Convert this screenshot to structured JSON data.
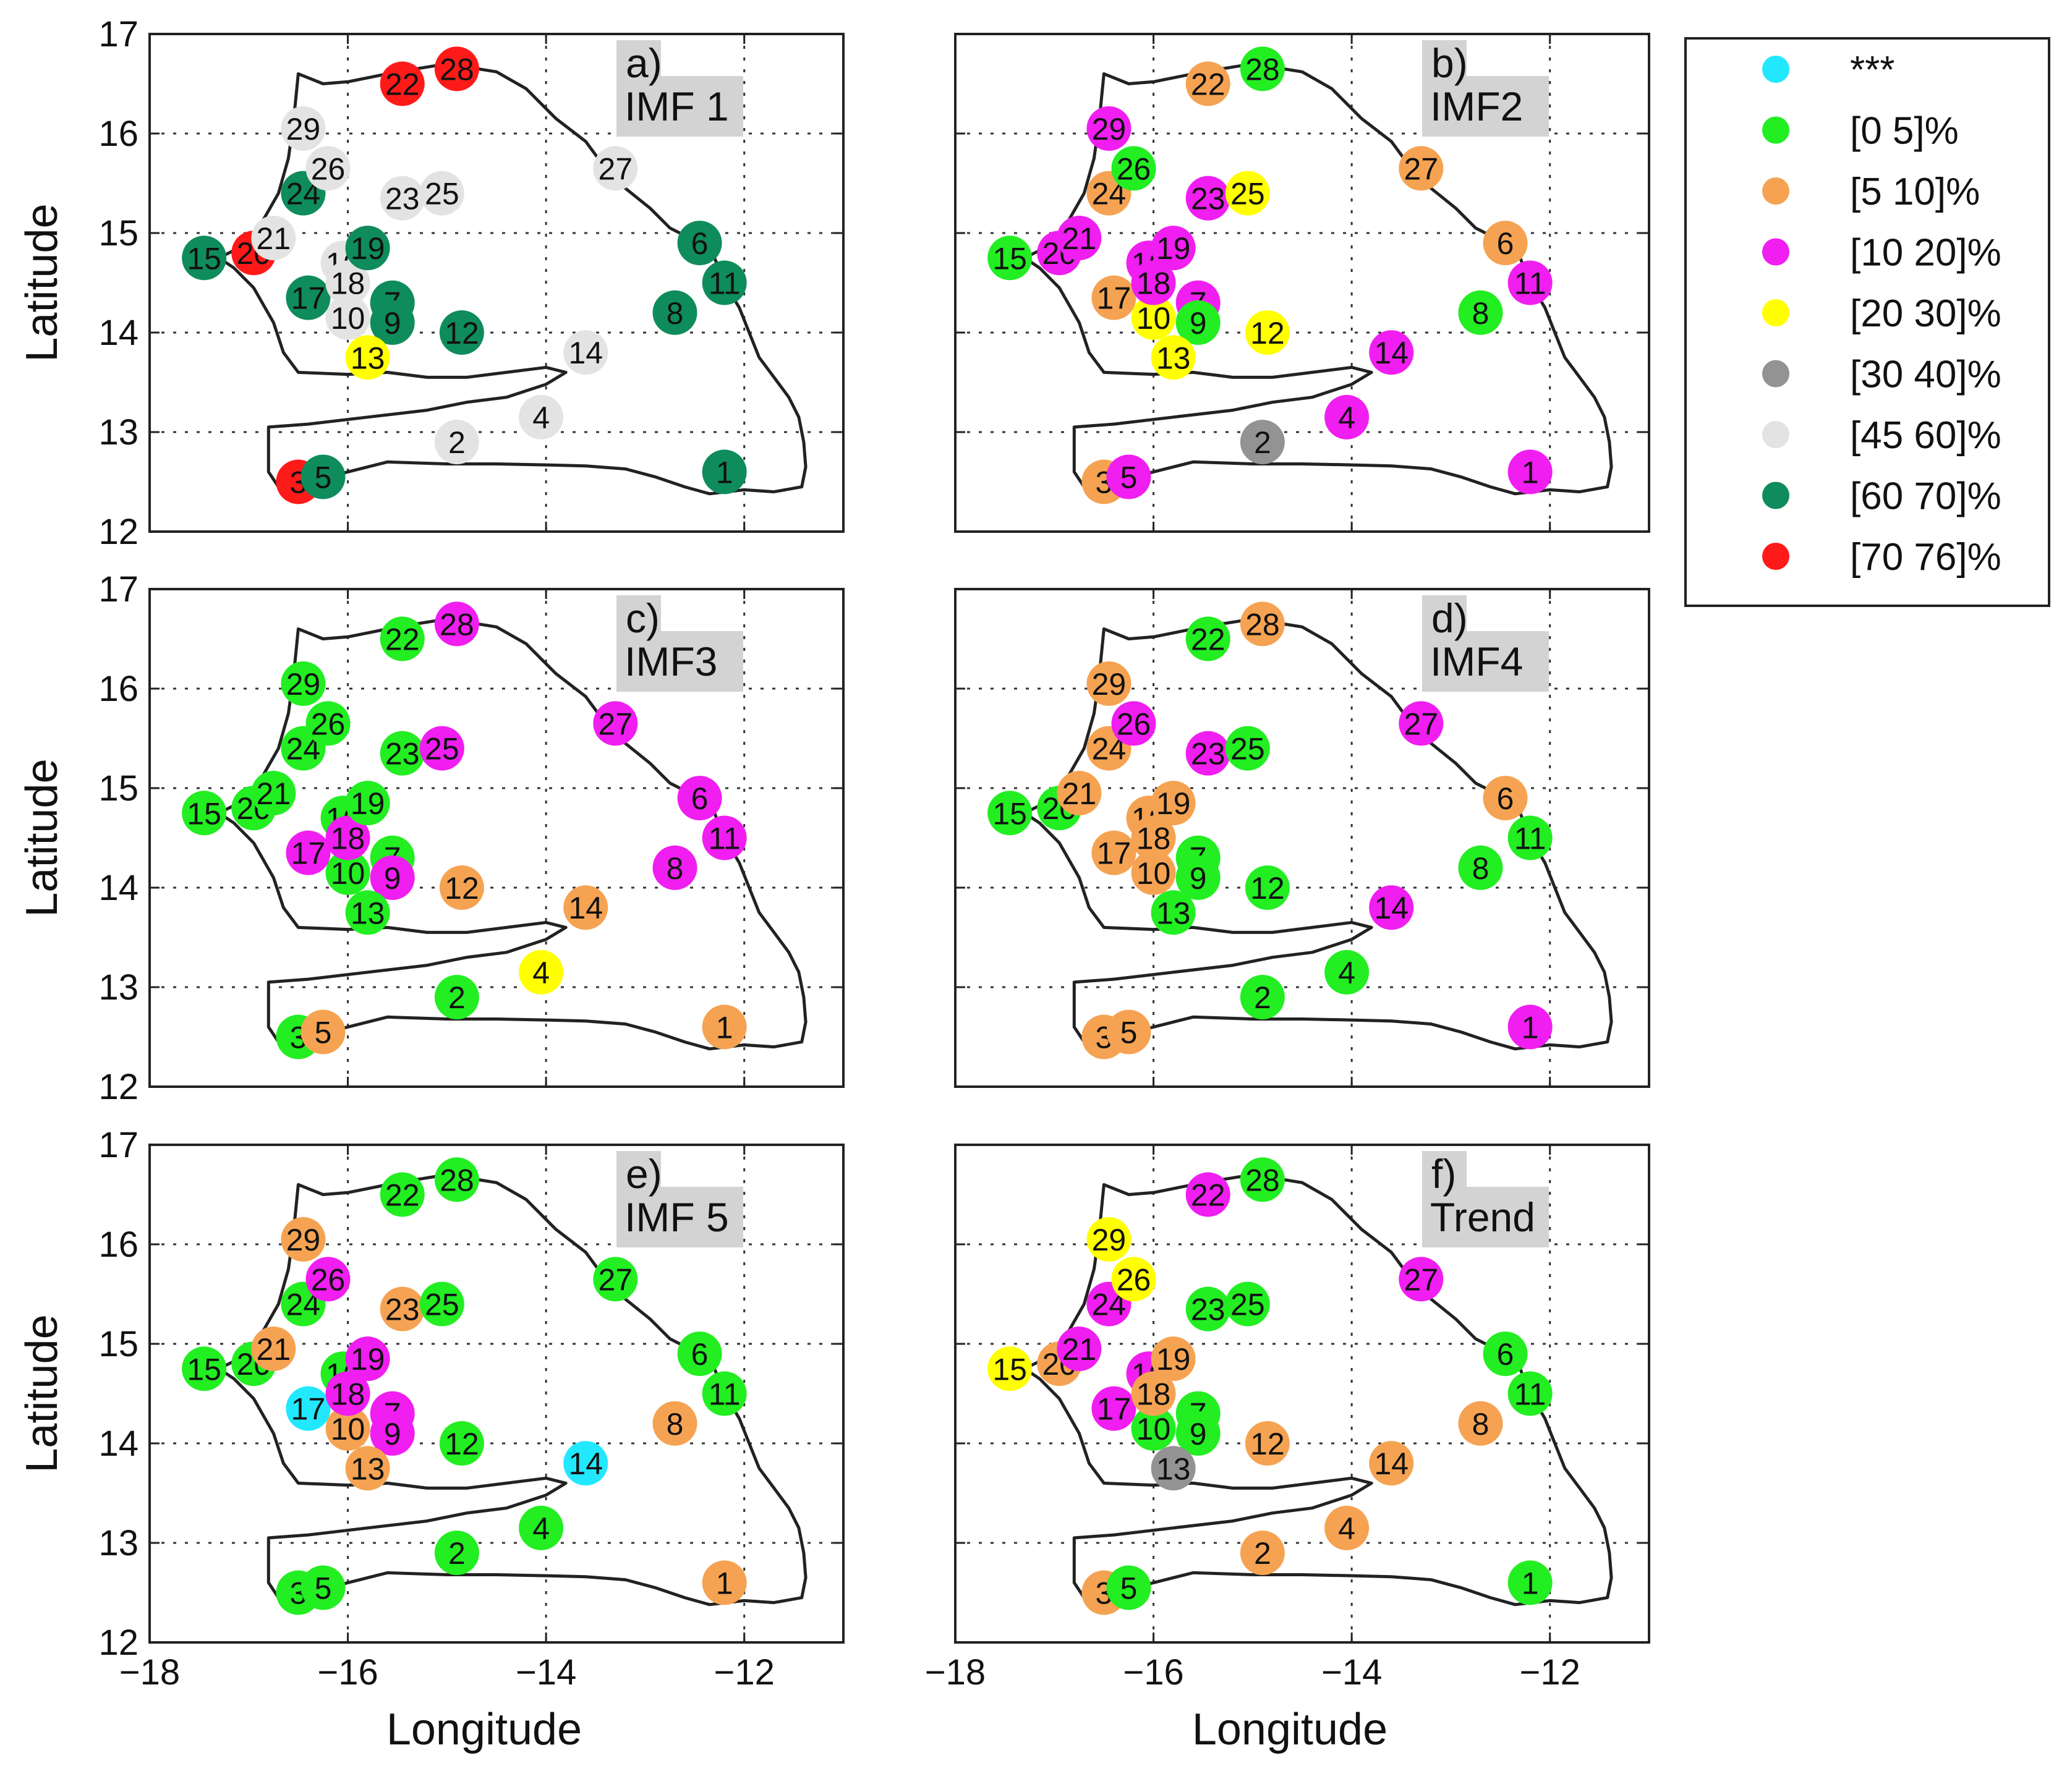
{
  "chart_data": {
    "type": "scatter",
    "subtype": "multi-panel station map",
    "xlabel": "Longitude",
    "ylabel": "Latitude",
    "xlim": [
      -18,
      -11
    ],
    "ylim": [
      12,
      17
    ],
    "xticks": [
      -18,
      -16,
      -14,
      -12
    ],
    "yticks": [
      12,
      13,
      14,
      15,
      16,
      17
    ],
    "x_tick_labels": [
      "−18",
      "−16",
      "−14",
      "−12"
    ],
    "y_tick_labels": [
      "12",
      "13",
      "14",
      "15",
      "16",
      "17"
    ],
    "legend": {
      "position": "top-right",
      "entries": [
        {
          "key": "k0",
          "label": "***",
          "color": "#22e8ff"
        },
        {
          "key": "k1",
          "label": "[0 5]%",
          "color": "#22ee22"
        },
        {
          "key": "k2",
          "label": "[5 10]%",
          "color": "#f5a352"
        },
        {
          "key": "k3",
          "label": "[10 20]%",
          "color": "#f01ef0"
        },
        {
          "key": "k4",
          "label": "[20 30]%",
          "color": "#ffff00"
        },
        {
          "key": "k5",
          "label": "[30 40]%",
          "color": "#939393"
        },
        {
          "key": "k6",
          "label": "[45 60]%",
          "color": "#e3e3e3"
        },
        {
          "key": "k7",
          "label": "[60 70]%",
          "color": "#0f8c5c"
        },
        {
          "key": "k8",
          "label": "[70 76]%",
          "color": "#ff1a1a"
        }
      ]
    },
    "stations": [
      {
        "id": "1",
        "lon": -12.2,
        "lat": 12.6
      },
      {
        "id": "2",
        "lon": -14.9,
        "lat": 12.9
      },
      {
        "id": "3",
        "lon": -16.5,
        "lat": 12.5
      },
      {
        "id": "5",
        "lon": -16.25,
        "lat": 12.55
      },
      {
        "id": "4",
        "lon": -14.05,
        "lat": 13.15
      },
      {
        "id": "6",
        "lon": -12.45,
        "lat": 14.9
      },
      {
        "id": "7",
        "lon": -15.55,
        "lat": 14.3
      },
      {
        "id": "8",
        "lon": -12.7,
        "lat": 14.2
      },
      {
        "id": "9",
        "lon": -15.55,
        "lat": 14.1
      },
      {
        "id": "10",
        "lon": -16.0,
        "lat": 14.15
      },
      {
        "id": "11",
        "lon": -12.2,
        "lat": 14.5
      },
      {
        "id": "12",
        "lon": -14.85,
        "lat": 14.0
      },
      {
        "id": "13",
        "lon": -15.8,
        "lat": 13.75
      },
      {
        "id": "14",
        "lon": -13.6,
        "lat": 13.8
      },
      {
        "id": "15",
        "lon": -17.45,
        "lat": 14.75
      },
      {
        "id": "16",
        "lon": -16.05,
        "lat": 14.7
      },
      {
        "id": "17",
        "lon": -16.4,
        "lat": 14.35
      },
      {
        "id": "18",
        "lon": -16.0,
        "lat": 14.5
      },
      {
        "id": "19",
        "lon": -15.8,
        "lat": 14.85
      },
      {
        "id": "20",
        "lon": -16.95,
        "lat": 14.8
      },
      {
        "id": "21",
        "lon": -16.75,
        "lat": 14.95
      },
      {
        "id": "22",
        "lon": -15.45,
        "lat": 16.5
      },
      {
        "id": "23",
        "lon": -15.45,
        "lat": 15.35
      },
      {
        "id": "24",
        "lon": -16.45,
        "lat": 15.4
      },
      {
        "id": "25",
        "lon": -15.05,
        "lat": 15.4
      },
      {
        "id": "26",
        "lon": -16.2,
        "lat": 15.65
      },
      {
        "id": "27",
        "lon": -13.3,
        "lat": 15.65
      },
      {
        "id": "28",
        "lon": -14.9,
        "lat": 16.65
      },
      {
        "id": "29",
        "lon": -16.45,
        "lat": 16.05
      }
    ],
    "panels": [
      {
        "name": "a)",
        "title": "IMF 1",
        "classes": {
          "1": "k7",
          "2": "k6",
          "3": "k8",
          "4": "k6",
          "5": "k7",
          "6": "k7",
          "7": "k7",
          "8": "k7",
          "9": "k7",
          "10": "k6",
          "11": "k7",
          "12": "k7",
          "13": "k4",
          "14": "k6",
          "15": "k7",
          "16": "k6",
          "17": "k7",
          "18": "k6",
          "19": "k7",
          "20": "k8",
          "21": "k6",
          "22": "k8",
          "23": "k6",
          "24": "k7",
          "25": "k6",
          "26": "k6",
          "27": "k6",
          "28": "k8",
          "29": "k6"
        }
      },
      {
        "name": "b)",
        "title": "IMF2",
        "classes": {
          "1": "k3",
          "2": "k5",
          "3": "k2",
          "4": "k3",
          "5": "k3",
          "6": "k2",
          "7": "k3",
          "8": "k1",
          "9": "k1",
          "10": "k4",
          "11": "k3",
          "12": "k4",
          "13": "k4",
          "14": "k3",
          "15": "k1",
          "16": "k3",
          "17": "k2",
          "18": "k3",
          "19": "k3",
          "20": "k3",
          "21": "k3",
          "22": "k2",
          "23": "k3",
          "24": "k2",
          "25": "k4",
          "26": "k1",
          "27": "k2",
          "28": "k1",
          "29": "k3"
        }
      },
      {
        "name": "c)",
        "title": "IMF3",
        "classes": {
          "1": "k2",
          "2": "k1",
          "3": "k1",
          "4": "k4",
          "5": "k2",
          "6": "k3",
          "7": "k1",
          "8": "k3",
          "9": "k3",
          "10": "k1",
          "11": "k3",
          "12": "k2",
          "13": "k1",
          "14": "k2",
          "15": "k1",
          "16": "k1",
          "17": "k3",
          "18": "k3",
          "19": "k1",
          "20": "k1",
          "21": "k1",
          "22": "k1",
          "23": "k1",
          "24": "k1",
          "25": "k3",
          "26": "k1",
          "27": "k3",
          "28": "k3",
          "29": "k1"
        }
      },
      {
        "name": "d)",
        "title": "IMF4",
        "classes": {
          "1": "k3",
          "2": "k1",
          "3": "k2",
          "4": "k1",
          "5": "k2",
          "6": "k2",
          "7": "k1",
          "8": "k1",
          "9": "k1",
          "10": "k2",
          "11": "k1",
          "12": "k1",
          "13": "k1",
          "14": "k3",
          "15": "k1",
          "16": "k2",
          "17": "k2",
          "18": "k2",
          "19": "k2",
          "20": "k1",
          "21": "k2",
          "22": "k1",
          "23": "k3",
          "24": "k2",
          "25": "k1",
          "26": "k3",
          "27": "k3",
          "28": "k2",
          "29": "k2"
        }
      },
      {
        "name": "e)",
        "title": "IMF 5",
        "classes": {
          "1": "k2",
          "2": "k1",
          "3": "k1",
          "4": "k1",
          "5": "k1",
          "6": "k1",
          "7": "k3",
          "8": "k2",
          "9": "k3",
          "10": "k2",
          "11": "k1",
          "12": "k1",
          "13": "k2",
          "14": "k0",
          "15": "k1",
          "16": "k1",
          "17": "k0",
          "18": "k3",
          "19": "k3",
          "20": "k1",
          "21": "k2",
          "22": "k1",
          "23": "k2",
          "24": "k1",
          "25": "k1",
          "26": "k3",
          "27": "k1",
          "28": "k1",
          "29": "k2"
        }
      },
      {
        "name": "f)",
        "title": "Trend",
        "classes": {
          "1": "k1",
          "2": "k2",
          "3": "k2",
          "4": "k2",
          "5": "k1",
          "6": "k1",
          "7": "k1",
          "8": "k2",
          "9": "k1",
          "10": "k1",
          "11": "k1",
          "12": "k2",
          "13": "k5",
          "14": "k2",
          "15": "k4",
          "16": "k3",
          "17": "k3",
          "18": "k2",
          "19": "k2",
          "20": "k2",
          "21": "k3",
          "22": "k3",
          "23": "k1",
          "24": "k3",
          "25": "k1",
          "26": "k4",
          "27": "k3",
          "28": "k1",
          "29": "k4"
        }
      }
    ]
  }
}
